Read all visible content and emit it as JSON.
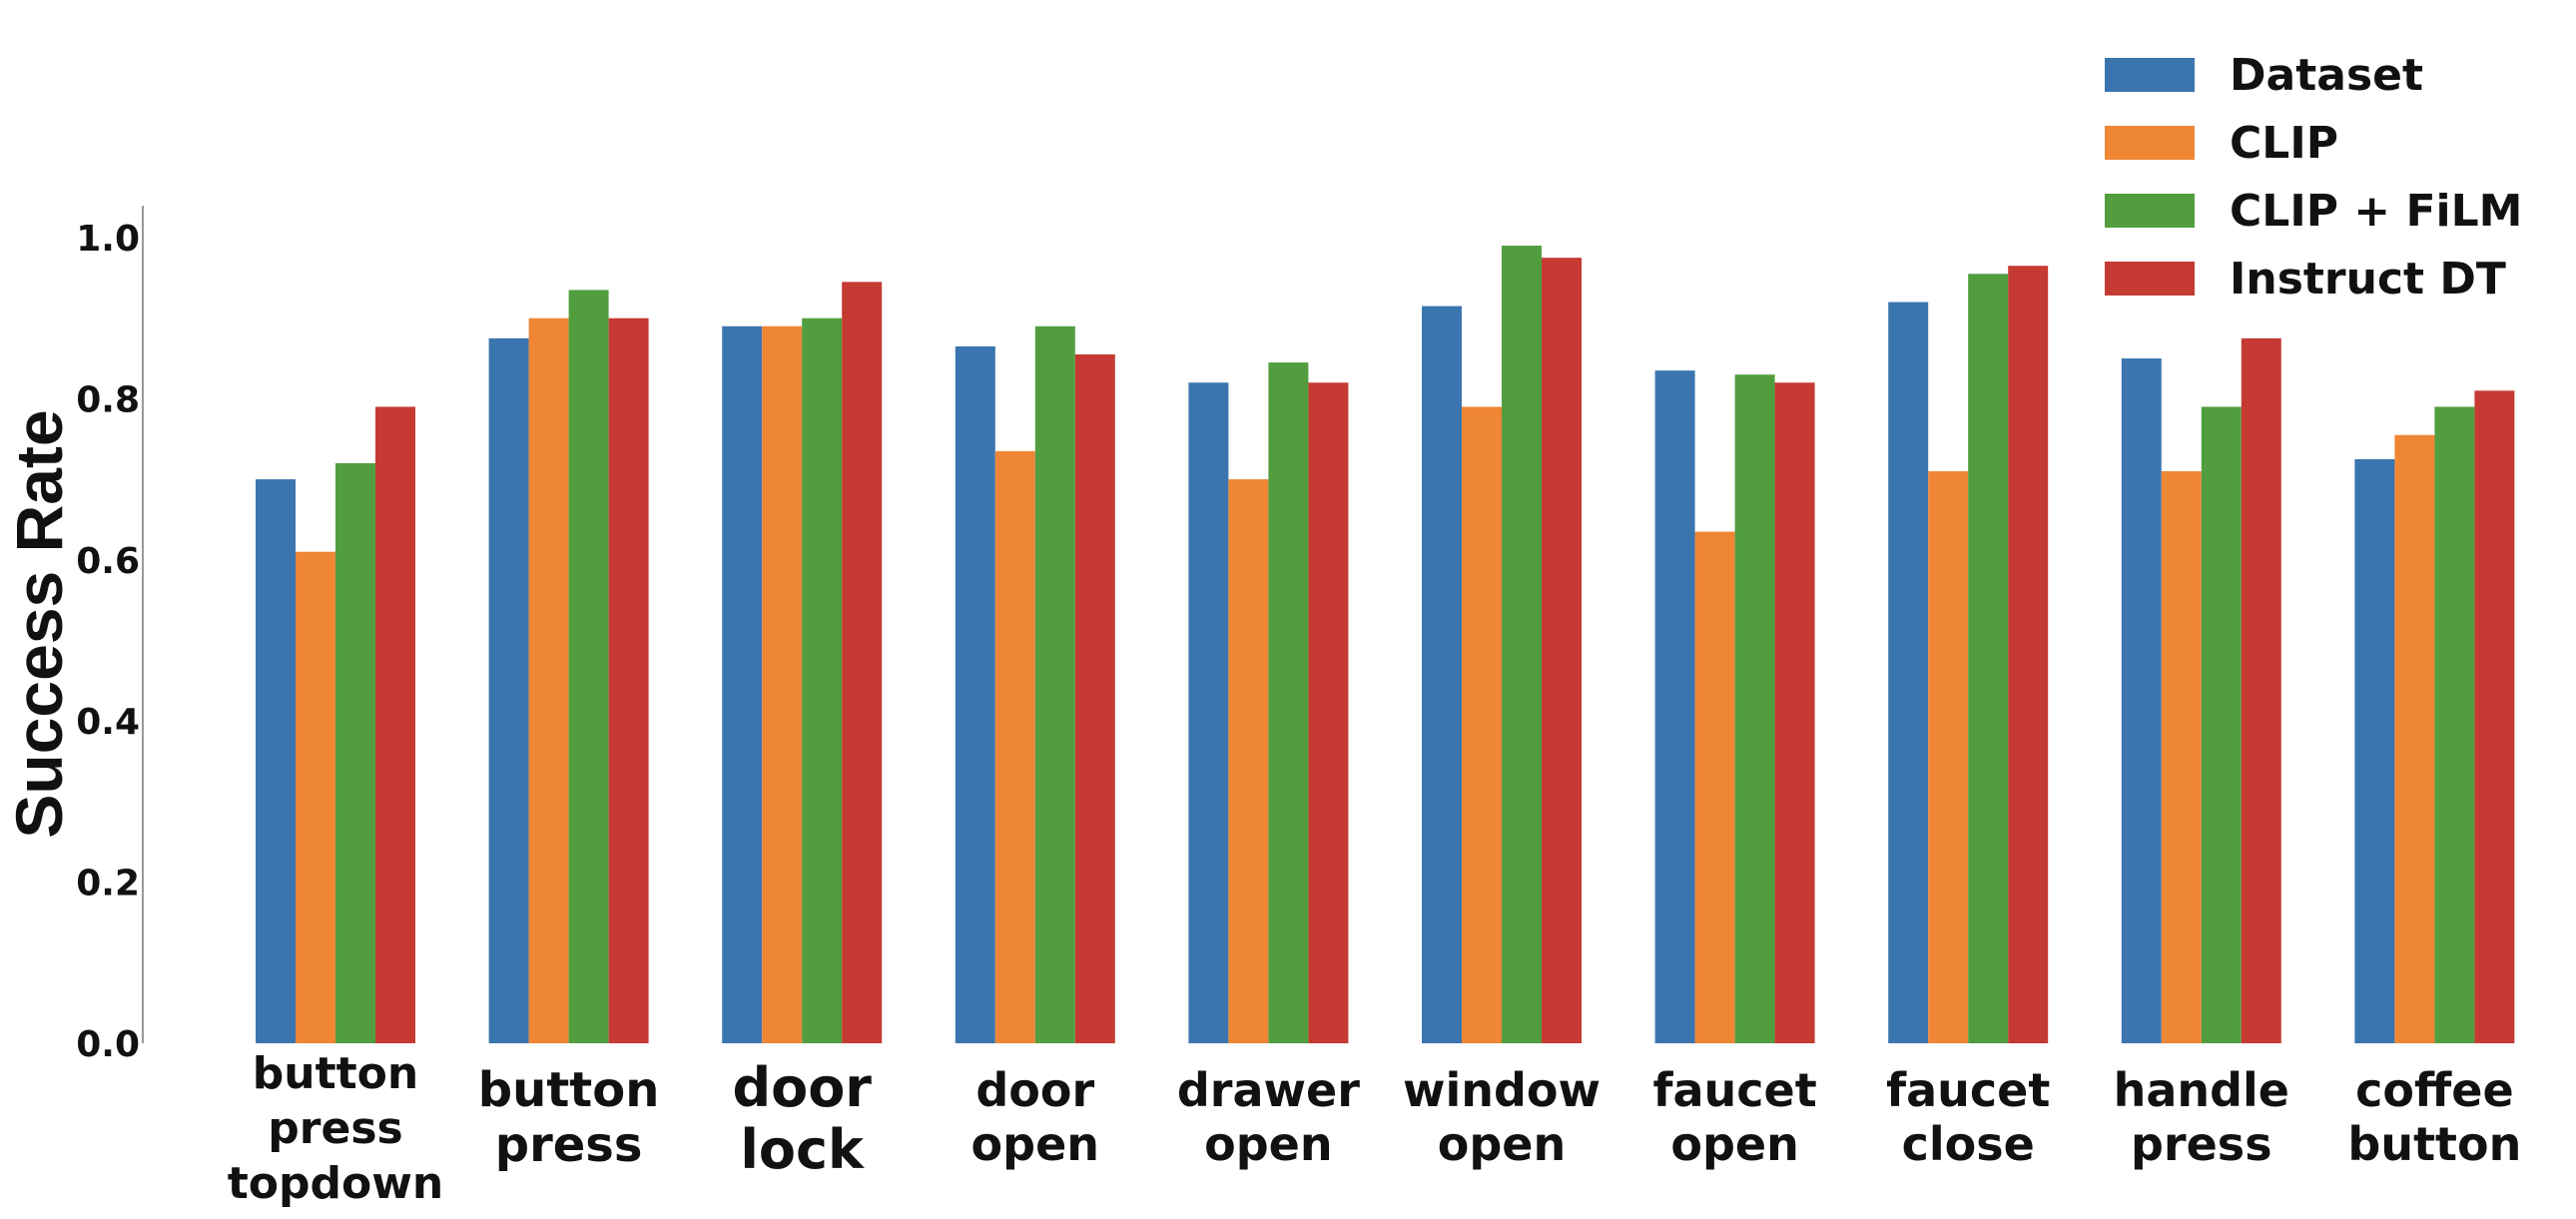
{
  "chart_data": {
    "type": "bar",
    "ylabel": "Success Rate",
    "xlabel": "",
    "ylim": [
      0,
      1.0
    ],
    "yticks": [
      "0.0",
      "0.2",
      "0.4",
      "0.6",
      "0.8",
      "1.0"
    ],
    "grid": false,
    "legend_position": "top-right",
    "categories": [
      [
        "button",
        "press",
        "topdown"
      ],
      [
        "button",
        "press"
      ],
      [
        "door",
        "lock"
      ],
      [
        "door",
        "open"
      ],
      [
        "drawer",
        "open"
      ],
      [
        "window",
        "open"
      ],
      [
        "faucet",
        "open"
      ],
      [
        "faucet",
        "close"
      ],
      [
        "handle",
        "press"
      ],
      [
        "coffee",
        "button"
      ]
    ],
    "series": [
      {
        "name": "Dataset",
        "color": "#3b75af",
        "values": [
          0.7,
          0.875,
          0.89,
          0.865,
          0.82,
          0.915,
          0.835,
          0.92,
          0.85,
          0.725
        ]
      },
      {
        "name": "CLIP",
        "color": "#ef8636",
        "values": [
          0.61,
          0.9,
          0.89,
          0.735,
          0.7,
          0.79,
          0.635,
          0.71,
          0.71,
          0.755
        ]
      },
      {
        "name": "CLIP + FiLM",
        "color": "#529e3f",
        "values": [
          0.72,
          0.935,
          0.9,
          0.89,
          0.845,
          0.99,
          0.83,
          0.955,
          0.79,
          0.79
        ]
      },
      {
        "name": "Instruct DT",
        "color": "#c53a32",
        "values": [
          0.79,
          0.9,
          0.945,
          0.855,
          0.82,
          0.975,
          0.82,
          0.965,
          0.875,
          0.81
        ]
      }
    ]
  }
}
